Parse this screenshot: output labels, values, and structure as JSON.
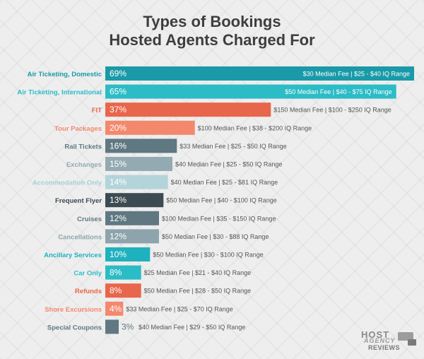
{
  "chart_data": {
    "type": "bar",
    "orientation": "horizontal",
    "title": [
      "Types of Bookings",
      "Hosted Agents Charged For"
    ],
    "xlim": [
      0,
      69
    ],
    "categories": [
      "Air Ticketing, Domestic",
      "Air Ticketing, International",
      "FIT",
      "Tour Packages",
      "Rail Tickets",
      "Exchanges",
      "Accommodation Only",
      "Frequent Flyer",
      "Cruises",
      "Cancellations",
      "Ancillary Services",
      "Car Only",
      "Refunds",
      "Shore Excursions",
      "Special Coupons"
    ],
    "values": [
      69,
      65,
      37,
      20,
      16,
      15,
      14,
      13,
      12,
      12,
      10,
      8,
      8,
      4,
      3
    ],
    "value_labels": [
      "69%",
      "65%",
      "37%",
      "20%",
      "16%",
      "15%",
      "14%",
      "13%",
      "12%",
      "12%",
      "10%",
      "8%",
      "8%",
      "4%",
      "3%"
    ],
    "notes": [
      "$30 Median Fee | $25 - $40 IQ Range",
      "$50 Median Fee | $40 - $75 IQ Range",
      "$150 Median Fee | $100 - $250 IQ Range",
      "$100 Median Fee | $38 - $200 IQ Range",
      "$33 Median Fee | $25 - $50 IQ Range",
      "$40 Median Fee | $25 - $50 IQ Range",
      "$40 Median Fee | $25 - $81 IQ Range",
      "$50 Median Fee | $40 - $100 IQ Range",
      "$100 Median Fee | $35 - $150 IQ Range",
      "$50 Median Fee | $30 - $88 IQ Range",
      "$50 Median Fee | $30 - $100 IQ Range",
      "$25 Median Fee | $21 - $40 IQ Range",
      "$50 Median Fee | $28 - $50 IQ Range",
      "$33 Median Fee | $25 - $70 IQ Range",
      "$40 Median Fee | $29 - $50 IQ Range"
    ],
    "colors": [
      "#1a9aa8",
      "#2bbcc6",
      "#e8664b",
      "#f3886d",
      "#5f7881",
      "#93aab2",
      "#b2d4da",
      "#3c4a52",
      "#5f7881",
      "#8ea4ac",
      "#1fb1bd",
      "#2bbcc6",
      "#e8664b",
      "#f3886d",
      "#5f7881"
    ],
    "label_colors": [
      "#1a9aa8",
      "#2bbcc6",
      "#e8664b",
      "#f3886d",
      "#5f7881",
      "#93aab2",
      "#a4cfd6",
      "#3c4a52",
      "#5f7881",
      "#8ea4ac",
      "#1fb1bd",
      "#2bbcc6",
      "#e8664b",
      "#f3886d",
      "#5f7881"
    ]
  },
  "logo": {
    "line1": "HOST",
    "line2": "AGENCY",
    "line3": "REVIEWS"
  }
}
